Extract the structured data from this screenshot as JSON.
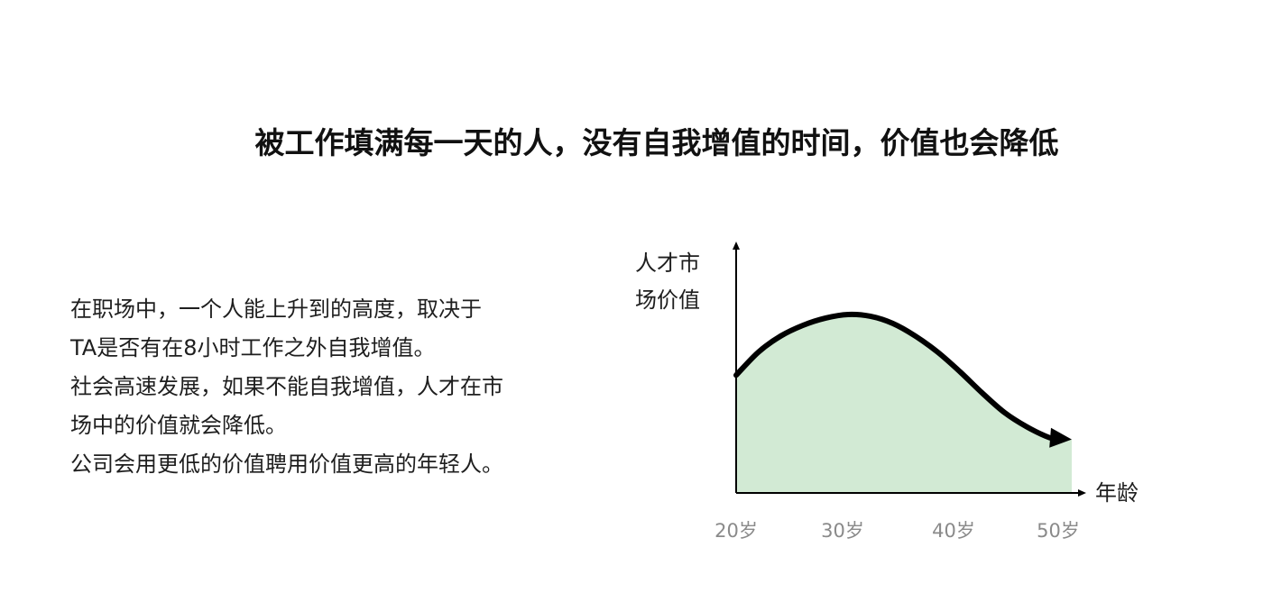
{
  "title": "被工作填满每一天的人，没有自我增值的时间，价值也会降低",
  "description": [
    "在职场中，一个人能上升到的高度，取决于",
    "TA是否有在8小时工作之外自我增值。",
    "社会高速发展，如果不能自我增值，人才在市",
    "场中的价值就会降低。",
    "公司会用更低的价值聘用价值更高的年轻人。"
  ],
  "chart_data": {
    "type": "area",
    "ylabel_lines": [
      "人才市",
      "场价值"
    ],
    "xlabel": "年龄",
    "x_ticks": [
      "20岁",
      "30岁",
      "40岁",
      "50岁"
    ],
    "x": [
      20,
      22,
      24,
      26,
      28,
      30,
      32,
      34,
      36,
      38,
      40,
      42,
      44,
      46,
      48,
      50
    ],
    "y": [
      0.66,
      0.79,
      0.88,
      0.94,
      0.98,
      1.0,
      0.99,
      0.95,
      0.88,
      0.79,
      0.68,
      0.56,
      0.45,
      0.37,
      0.31,
      0.3
    ],
    "xlim": [
      20,
      50
    ],
    "ylim": [
      0,
      1
    ],
    "fill_color": "#d2ead4",
    "line_color": "#000000",
    "arrow_end": true,
    "grid": false
  }
}
